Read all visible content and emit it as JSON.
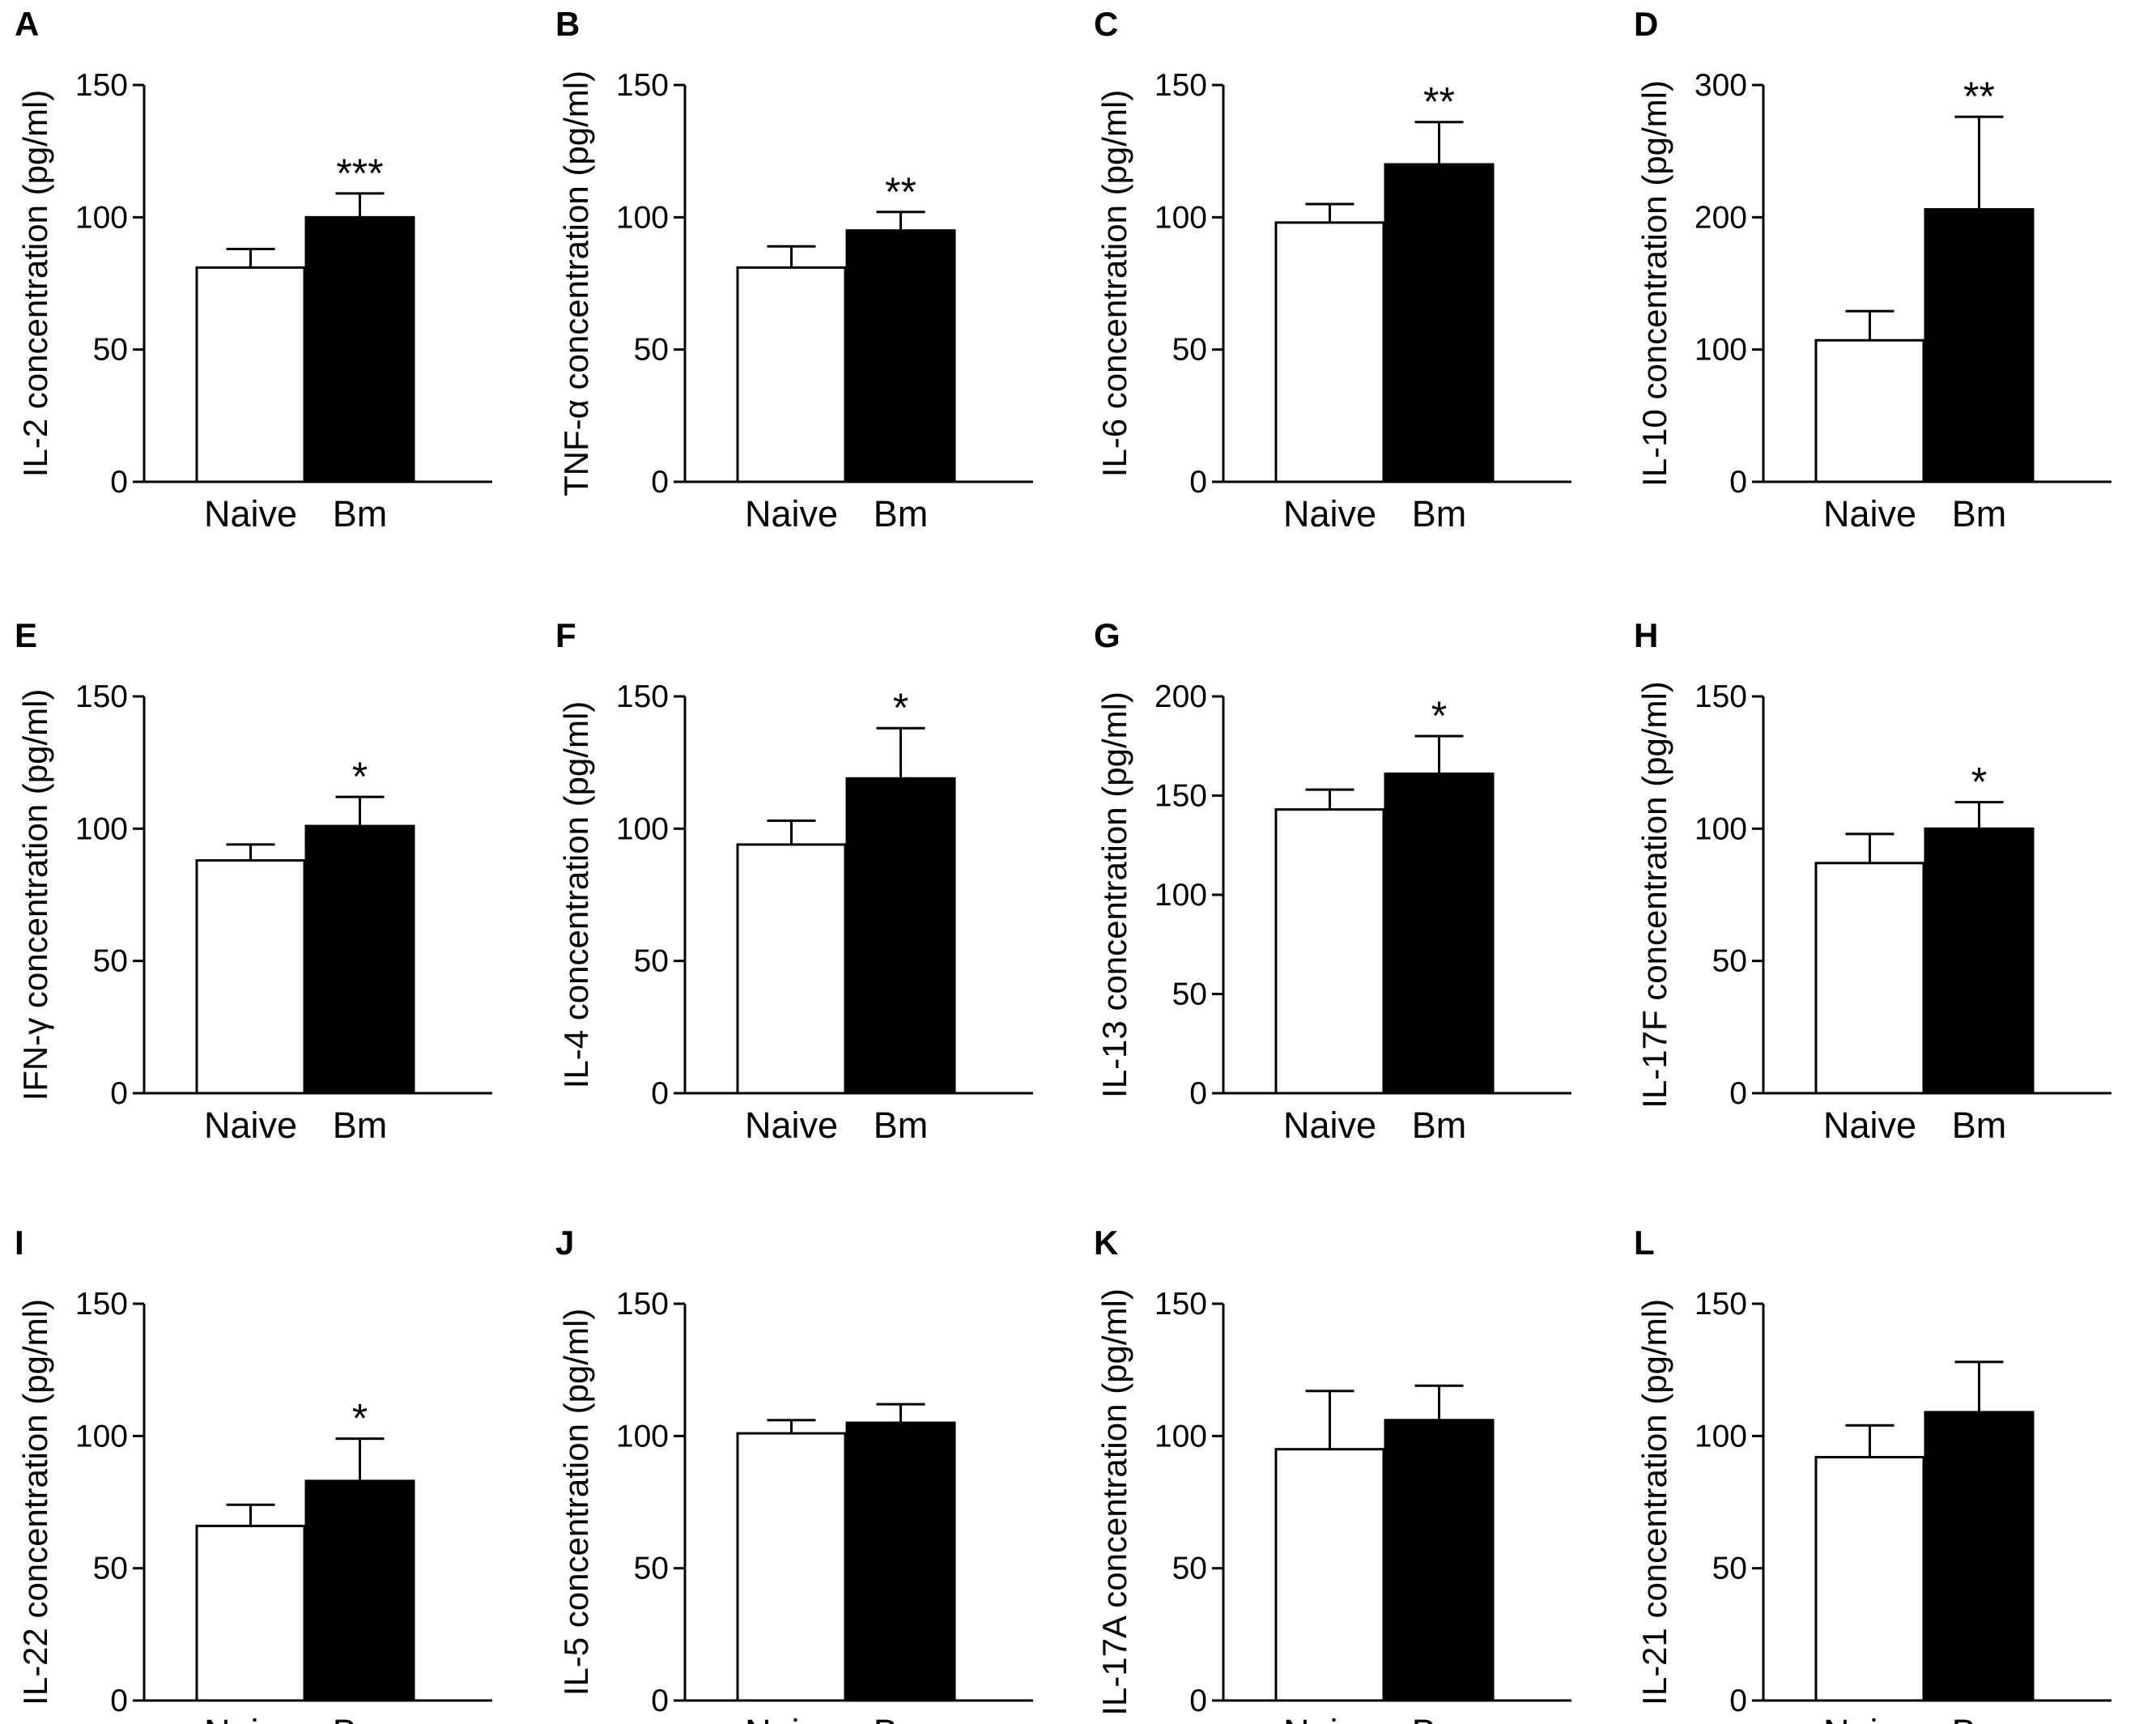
{
  "figure": {
    "categories": [
      "Naive",
      "Bm"
    ],
    "bar_colors": {
      "Naive": "#ffffff",
      "Bm": "#000000"
    },
    "axis_color": "#000000"
  },
  "chart_data": [
    {
      "type": "bar",
      "panel": "A",
      "ylabel": "IL-2 concentration (pg/ml)",
      "categories": [
        "Naive",
        "Bm"
      ],
      "values": [
        81,
        100
      ],
      "errors": [
        7,
        9
      ],
      "ylim": [
        0,
        150
      ],
      "yticks": [
        0,
        50,
        100,
        150
      ],
      "significance": [
        "",
        "***"
      ]
    },
    {
      "type": "bar",
      "panel": "B",
      "ylabel": "TNF-α concentration (pg/ml)",
      "categories": [
        "Naive",
        "Bm"
      ],
      "values": [
        81,
        95
      ],
      "errors": [
        8,
        7
      ],
      "ylim": [
        0,
        150
      ],
      "yticks": [
        0,
        50,
        100,
        150
      ],
      "significance": [
        "",
        "**"
      ]
    },
    {
      "type": "bar",
      "panel": "C",
      "ylabel": "IL-6 concentration (pg/ml)",
      "categories": [
        "Naive",
        "Bm"
      ],
      "values": [
        98,
        120
      ],
      "errors": [
        7,
        16
      ],
      "ylim": [
        0,
        150
      ],
      "yticks": [
        0,
        50,
        100,
        150
      ],
      "significance": [
        "",
        "**"
      ]
    },
    {
      "type": "bar",
      "panel": "D",
      "ylabel": "IL-10 concentration (pg/ml)",
      "categories": [
        "Naive",
        "Bm"
      ],
      "values": [
        107,
        206
      ],
      "errors": [
        22,
        70
      ],
      "ylim": [
        0,
        300
      ],
      "yticks": [
        0,
        100,
        200,
        300
      ],
      "significance": [
        "",
        "**"
      ]
    },
    {
      "type": "bar",
      "panel": "E",
      "ylabel": "IFN-γ concentration (pg/ml)",
      "categories": [
        "Naive",
        "Bm"
      ],
      "values": [
        88,
        101
      ],
      "errors": [
        6,
        11
      ],
      "ylim": [
        0,
        150
      ],
      "yticks": [
        0,
        50,
        100,
        150
      ],
      "significance": [
        "",
        "*"
      ]
    },
    {
      "type": "bar",
      "panel": "F",
      "ylabel": "IL-4 concentration (pg/ml)",
      "categories": [
        "Naive",
        "Bm"
      ],
      "values": [
        94,
        119
      ],
      "errors": [
        9,
        19
      ],
      "ylim": [
        0,
        150
      ],
      "yticks": [
        0,
        50,
        100,
        150
      ],
      "significance": [
        "",
        "*"
      ]
    },
    {
      "type": "bar",
      "panel": "G",
      "ylabel": "IL-13 concentration (pg/ml)",
      "categories": [
        "Naive",
        "Bm"
      ],
      "values": [
        143,
        161
      ],
      "errors": [
        10,
        19
      ],
      "ylim": [
        0,
        200
      ],
      "yticks": [
        0,
        50,
        100,
        150,
        200
      ],
      "significance": [
        "",
        "*"
      ]
    },
    {
      "type": "bar",
      "panel": "H",
      "ylabel": "IL-17F concentration (pg/ml)",
      "categories": [
        "Naive",
        "Bm"
      ],
      "values": [
        87,
        100
      ],
      "errors": [
        11,
        10
      ],
      "ylim": [
        0,
        150
      ],
      "yticks": [
        0,
        50,
        100,
        150
      ],
      "significance": [
        "",
        "*"
      ]
    },
    {
      "type": "bar",
      "panel": "I",
      "ylabel": "IL-22 concentration (pg/ml)",
      "categories": [
        "Naive",
        "Bm"
      ],
      "values": [
        66,
        83
      ],
      "errors": [
        8,
        16
      ],
      "ylim": [
        0,
        150
      ],
      "yticks": [
        0,
        50,
        100,
        150
      ],
      "significance": [
        "",
        "*"
      ]
    },
    {
      "type": "bar",
      "panel": "J",
      "ylabel": "IL-5 concentration (pg/ml)",
      "categories": [
        "Naive",
        "Bm"
      ],
      "values": [
        101,
        105
      ],
      "errors": [
        5,
        7
      ],
      "ylim": [
        0,
        150
      ],
      "yticks": [
        0,
        50,
        100,
        150
      ],
      "significance": [
        "",
        ""
      ]
    },
    {
      "type": "bar",
      "panel": "K",
      "ylabel": "IL-17A concentration (pg/ml)",
      "categories": [
        "Naive",
        "Bm"
      ],
      "values": [
        95,
        106
      ],
      "errors": [
        22,
        13
      ],
      "ylim": [
        0,
        150
      ],
      "yticks": [
        0,
        50,
        100,
        150
      ],
      "significance": [
        "",
        ""
      ]
    },
    {
      "type": "bar",
      "panel": "L",
      "ylabel": "IL-21 concentration (pg/ml)",
      "categories": [
        "Naive",
        "Bm"
      ],
      "values": [
        92,
        109
      ],
      "errors": [
        12,
        19
      ],
      "ylim": [
        0,
        150
      ],
      "yticks": [
        0,
        50,
        100,
        150
      ],
      "significance": [
        "",
        ""
      ]
    }
  ]
}
